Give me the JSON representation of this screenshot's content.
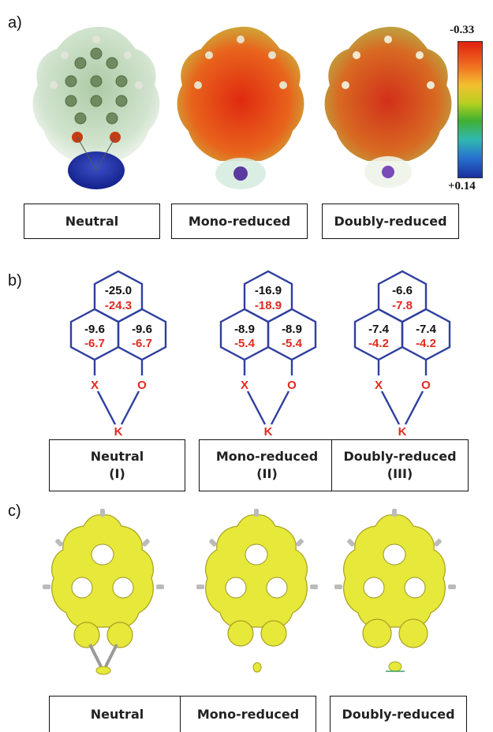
{
  "panels": {
    "a": {
      "label": "a)",
      "states": [
        "Neutral",
        "Mono-reduced",
        "Doubly-reduced"
      ],
      "colorbar": {
        "max_label": "-0.33",
        "min_label": "+0.14"
      }
    },
    "b": {
      "label": "b)",
      "structures": [
        {
          "top": [
            "-25.0",
            "-24.3"
          ],
          "left": [
            "-9.6",
            "-6.7"
          ],
          "right": [
            "-9.6",
            "-6.7"
          ],
          "atoms": [
            "X",
            "O",
            "K"
          ],
          "name": "Neutral",
          "roman": "(I)"
        },
        {
          "top": [
            "-16.9",
            "-18.9"
          ],
          "left": [
            "-8.9",
            "-5.4"
          ],
          "right": [
            "-8.9",
            "-5.4"
          ],
          "atoms": [
            "X",
            "O",
            "K"
          ],
          "name": "Mono-reduced",
          "roman": "(II)"
        },
        {
          "top": [
            "-6.6",
            "-7.8"
          ],
          "left": [
            "-7.4",
            "-4.2"
          ],
          "right": [
            "-7.4",
            "-4.2"
          ],
          "atoms": [
            "X",
            "O",
            "K"
          ],
          "name": "Doubly-reduced",
          "roman": "(III)"
        }
      ]
    },
    "c": {
      "label": "c)",
      "states": [
        "Neutral",
        "Mono-reduced",
        "Doubly-reduced"
      ]
    }
  },
  "colors": {
    "hex_line": "#2f3f9e",
    "nics_black": "#111111",
    "nics_red": "#e02a20",
    "esp_red": "#e8401a",
    "esp_green": "#b8d4a8",
    "esp_blue": "#1c2f9c",
    "acid_yellow": "#e6e83a"
  }
}
